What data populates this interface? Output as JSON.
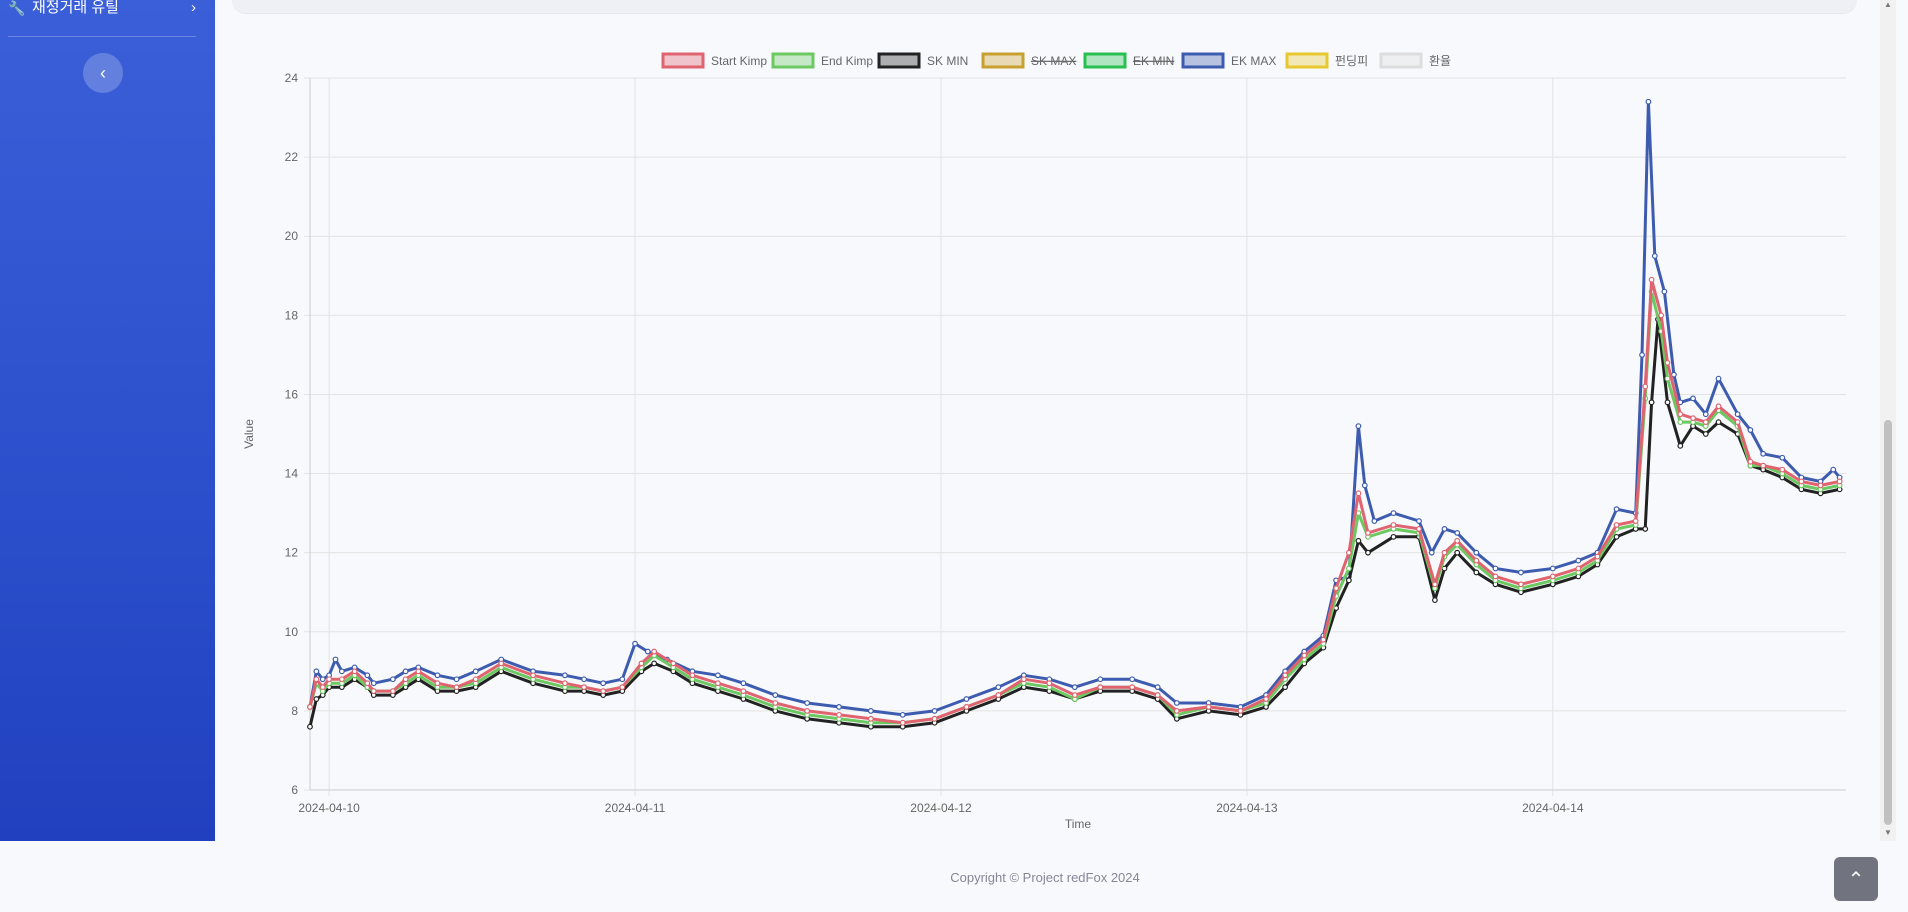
{
  "sidebar": {
    "item_label": "재정거래 유틸",
    "item_icon": "wrench-icon",
    "chevron_icon": "chevron-right-icon",
    "toggle_icon": "chevron-left-icon",
    "bg_color": "#2b4fcc"
  },
  "footer": {
    "copyright": "Copyright © Project redFox 2024"
  },
  "scroll_top_icon": "chevron-up-icon",
  "chart_data": {
    "type": "line",
    "xlabel": "Time",
    "ylabel": "Value",
    "ylim": [
      6,
      24
    ],
    "yticks": [
      6,
      8,
      10,
      12,
      14,
      16,
      18,
      20,
      22,
      24
    ],
    "xtick_labels": [
      "2024-04-10",
      "2024-04-11",
      "2024-04-12",
      "2024-04-13",
      "2024-04-14"
    ],
    "x_start": "2024-04-09T22:30",
    "x_end": "2024-04-14T23:00",
    "legend_position": "top",
    "grid": true,
    "series": [
      {
        "name": "Start Kimp",
        "color": "#e06470",
        "hidden": false
      },
      {
        "name": "End Kimp",
        "color": "#6cc860",
        "hidden": false
      },
      {
        "name": "SK MIN",
        "color": "#222222",
        "hidden": false
      },
      {
        "name": "SK MAX",
        "color": "#c8a030",
        "hidden": true
      },
      {
        "name": "EK MIN",
        "color": "#28c050",
        "hidden": true
      },
      {
        "name": "EK MAX",
        "color": "#3e5caf",
        "hidden": false
      },
      {
        "name": "펀딩피",
        "color": "#e8c830",
        "hidden": false
      },
      {
        "name": "환율",
        "color": "#dddddd",
        "hidden": false
      }
    ],
    "start_kimp": [
      [
        0,
        8.1
      ],
      [
        0.1,
        8.8
      ],
      [
        0.2,
        8.6
      ],
      [
        0.3,
        8.8
      ],
      [
        0.5,
        8.8
      ],
      [
        0.7,
        9.0
      ],
      [
        0.9,
        8.7
      ],
      [
        1.0,
        8.5
      ],
      [
        1.3,
        8.5
      ],
      [
        1.5,
        8.8
      ],
      [
        1.7,
        9.0
      ],
      [
        2.0,
        8.7
      ],
      [
        2.3,
        8.6
      ],
      [
        2.6,
        8.8
      ],
      [
        3.0,
        9.2
      ],
      [
        3.5,
        8.9
      ],
      [
        4.0,
        8.7
      ],
      [
        4.3,
        8.6
      ],
      [
        4.6,
        8.5
      ],
      [
        4.9,
        8.6
      ],
      [
        5.2,
        9.2
      ],
      [
        5.4,
        9.5
      ],
      [
        5.7,
        9.2
      ],
      [
        6.0,
        8.9
      ],
      [
        6.4,
        8.7
      ],
      [
        6.8,
        8.5
      ],
      [
        7.3,
        8.2
      ],
      [
        7.8,
        8.0
      ],
      [
        8.3,
        7.9
      ],
      [
        8.8,
        7.8
      ],
      [
        9.3,
        7.7
      ],
      [
        9.8,
        7.8
      ],
      [
        10.3,
        8.1
      ],
      [
        10.8,
        8.4
      ],
      [
        11.2,
        8.8
      ],
      [
        11.6,
        8.7
      ],
      [
        12.0,
        8.4
      ],
      [
        12.4,
        8.6
      ],
      [
        12.9,
        8.6
      ],
      [
        13.3,
        8.4
      ],
      [
        13.6,
        8.0
      ],
      [
        14.1,
        8.1
      ],
      [
        14.6,
        8.0
      ],
      [
        15.0,
        8.3
      ],
      [
        15.3,
        8.9
      ],
      [
        15.6,
        9.4
      ],
      [
        15.9,
        9.8
      ],
      [
        16.1,
        11.1
      ],
      [
        16.3,
        12.0
      ],
      [
        16.45,
        13.5
      ],
      [
        16.6,
        12.5
      ],
      [
        17.0,
        12.7
      ],
      [
        17.4,
        12.6
      ],
      [
        17.65,
        11.2
      ],
      [
        17.8,
        12.0
      ],
      [
        18.0,
        12.3
      ],
      [
        18.3,
        11.8
      ],
      [
        18.6,
        11.4
      ],
      [
        19.0,
        11.2
      ],
      [
        19.5,
        11.4
      ],
      [
        19.9,
        11.6
      ],
      [
        20.2,
        11.9
      ],
      [
        20.5,
        12.7
      ],
      [
        20.8,
        12.8
      ],
      [
        20.95,
        16.2
      ],
      [
        21.05,
        18.9
      ],
      [
        21.2,
        18.0
      ],
      [
        21.3,
        16.8
      ],
      [
        21.5,
        15.5
      ],
      [
        21.7,
        15.4
      ],
      [
        21.9,
        15.3
      ],
      [
        22.1,
        15.7
      ],
      [
        22.4,
        15.3
      ],
      [
        22.6,
        14.3
      ],
      [
        22.8,
        14.2
      ],
      [
        23.1,
        14.1
      ],
      [
        23.4,
        13.8
      ],
      [
        23.7,
        13.7
      ],
      [
        24.0,
        13.8
      ]
    ],
    "sk_min": [
      [
        0,
        7.6
      ],
      [
        0.1,
        8.3
      ],
      [
        0.2,
        8.4
      ],
      [
        0.3,
        8.6
      ],
      [
        0.5,
        8.6
      ],
      [
        0.7,
        8.8
      ],
      [
        0.9,
        8.6
      ],
      [
        1.0,
        8.4
      ],
      [
        1.3,
        8.4
      ],
      [
        1.5,
        8.6
      ],
      [
        1.7,
        8.8
      ],
      [
        2.0,
        8.5
      ],
      [
        2.3,
        8.5
      ],
      [
        2.6,
        8.6
      ],
      [
        3.0,
        9.0
      ],
      [
        3.5,
        8.7
      ],
      [
        4.0,
        8.5
      ],
      [
        4.3,
        8.5
      ],
      [
        4.6,
        8.4
      ],
      [
        4.9,
        8.5
      ],
      [
        5.2,
        9.0
      ],
      [
        5.4,
        9.2
      ],
      [
        5.7,
        9.0
      ],
      [
        6.0,
        8.7
      ],
      [
        6.4,
        8.5
      ],
      [
        6.8,
        8.3
      ],
      [
        7.3,
        8.0
      ],
      [
        7.8,
        7.8
      ],
      [
        8.3,
        7.7
      ],
      [
        8.8,
        7.6
      ],
      [
        9.3,
        7.6
      ],
      [
        9.8,
        7.7
      ],
      [
        10.3,
        8.0
      ],
      [
        10.8,
        8.3
      ],
      [
        11.2,
        8.6
      ],
      [
        11.6,
        8.5
      ],
      [
        12.0,
        8.3
      ],
      [
        12.4,
        8.5
      ],
      [
        12.9,
        8.5
      ],
      [
        13.3,
        8.3
      ],
      [
        13.6,
        7.8
      ],
      [
        14.1,
        8.0
      ],
      [
        14.6,
        7.9
      ],
      [
        15.0,
        8.1
      ],
      [
        15.3,
        8.6
      ],
      [
        15.6,
        9.2
      ],
      [
        15.9,
        9.6
      ],
      [
        16.1,
        10.6
      ],
      [
        16.3,
        11.3
      ],
      [
        16.45,
        12.3
      ],
      [
        16.6,
        12.0
      ],
      [
        17.0,
        12.4
      ],
      [
        17.4,
        12.4
      ],
      [
        17.65,
        10.8
      ],
      [
        17.8,
        11.6
      ],
      [
        18.0,
        12.0
      ],
      [
        18.3,
        11.5
      ],
      [
        18.6,
        11.2
      ],
      [
        19.0,
        11.0
      ],
      [
        19.5,
        11.2
      ],
      [
        19.9,
        11.4
      ],
      [
        20.2,
        11.7
      ],
      [
        20.5,
        12.4
      ],
      [
        20.8,
        12.6
      ],
      [
        20.95,
        12.6
      ],
      [
        21.05,
        15.8
      ],
      [
        21.15,
        17.9
      ],
      [
        21.3,
        15.8
      ],
      [
        21.5,
        14.7
      ],
      [
        21.7,
        15.2
      ],
      [
        21.9,
        15.0
      ],
      [
        22.1,
        15.3
      ],
      [
        22.4,
        15.0
      ],
      [
        22.6,
        14.2
      ],
      [
        22.8,
        14.1
      ],
      [
        23.1,
        13.9
      ],
      [
        23.4,
        13.6
      ],
      [
        23.7,
        13.5
      ],
      [
        24.0,
        13.6
      ]
    ],
    "ek_max": [
      [
        0,
        8.1
      ],
      [
        0.1,
        9.0
      ],
      [
        0.2,
        8.8
      ],
      [
        0.3,
        8.9
      ],
      [
        0.4,
        9.3
      ],
      [
        0.5,
        9.0
      ],
      [
        0.7,
        9.1
      ],
      [
        0.9,
        8.9
      ],
      [
        1.0,
        8.7
      ],
      [
        1.3,
        8.8
      ],
      [
        1.5,
        9.0
      ],
      [
        1.7,
        9.1
      ],
      [
        2.0,
        8.9
      ],
      [
        2.3,
        8.8
      ],
      [
        2.6,
        9.0
      ],
      [
        3.0,
        9.3
      ],
      [
        3.5,
        9.0
      ],
      [
        4.0,
        8.9
      ],
      [
        4.3,
        8.8
      ],
      [
        4.6,
        8.7
      ],
      [
        4.9,
        8.8
      ],
      [
        5.1,
        9.7
      ],
      [
        5.3,
        9.5
      ],
      [
        5.6,
        9.3
      ],
      [
        6.0,
        9.0
      ],
      [
        6.4,
        8.9
      ],
      [
        6.8,
        8.7
      ],
      [
        7.3,
        8.4
      ],
      [
        7.8,
        8.2
      ],
      [
        8.3,
        8.1
      ],
      [
        8.8,
        8.0
      ],
      [
        9.3,
        7.9
      ],
      [
        9.8,
        8.0
      ],
      [
        10.3,
        8.3
      ],
      [
        10.8,
        8.6
      ],
      [
        11.2,
        8.9
      ],
      [
        11.6,
        8.8
      ],
      [
        12.0,
        8.6
      ],
      [
        12.4,
        8.8
      ],
      [
        12.9,
        8.8
      ],
      [
        13.3,
        8.6
      ],
      [
        13.6,
        8.2
      ],
      [
        14.1,
        8.2
      ],
      [
        14.6,
        8.1
      ],
      [
        15.0,
        8.4
      ],
      [
        15.3,
        9.0
      ],
      [
        15.6,
        9.5
      ],
      [
        15.9,
        9.9
      ],
      [
        16.1,
        11.3
      ],
      [
        16.3,
        11.4
      ],
      [
        16.45,
        15.2
      ],
      [
        16.55,
        13.7
      ],
      [
        16.7,
        12.8
      ],
      [
        17.0,
        13.0
      ],
      [
        17.4,
        12.8
      ],
      [
        17.6,
        12.0
      ],
      [
        17.8,
        12.6
      ],
      [
        18.0,
        12.5
      ],
      [
        18.3,
        12.0
      ],
      [
        18.6,
        11.6
      ],
      [
        19.0,
        11.5
      ],
      [
        19.5,
        11.6
      ],
      [
        19.9,
        11.8
      ],
      [
        20.2,
        12.0
      ],
      [
        20.5,
        13.1
      ],
      [
        20.8,
        13.0
      ],
      [
        20.9,
        17.0
      ],
      [
        21.0,
        23.4
      ],
      [
        21.1,
        19.5
      ],
      [
        21.25,
        18.6
      ],
      [
        21.4,
        16.5
      ],
      [
        21.5,
        15.8
      ],
      [
        21.7,
        15.9
      ],
      [
        21.9,
        15.5
      ],
      [
        22.1,
        16.4
      ],
      [
        22.4,
        15.5
      ],
      [
        22.6,
        15.1
      ],
      [
        22.8,
        14.5
      ],
      [
        23.1,
        14.4
      ],
      [
        23.4,
        13.9
      ],
      [
        23.7,
        13.8
      ],
      [
        23.9,
        14.1
      ],
      [
        24.0,
        13.9
      ]
    ],
    "end_kimp": [
      [
        0,
        8.1
      ],
      [
        0.1,
        8.7
      ],
      [
        0.2,
        8.5
      ],
      [
        0.3,
        8.7
      ],
      [
        0.5,
        8.7
      ],
      [
        0.7,
        8.9
      ],
      [
        0.9,
        8.6
      ],
      [
        1.0,
        8.5
      ],
      [
        1.3,
        8.5
      ],
      [
        1.5,
        8.7
      ],
      [
        1.7,
        8.9
      ],
      [
        2.0,
        8.6
      ],
      [
        2.3,
        8.6
      ],
      [
        2.6,
        8.7
      ],
      [
        3.0,
        9.1
      ],
      [
        3.5,
        8.8
      ],
      [
        4.0,
        8.6
      ],
      [
        4.3,
        8.6
      ],
      [
        4.6,
        8.5
      ],
      [
        4.9,
        8.6
      ],
      [
        5.2,
        9.1
      ],
      [
        5.4,
        9.4
      ],
      [
        5.7,
        9.1
      ],
      [
        6.0,
        8.8
      ],
      [
        6.4,
        8.6
      ],
      [
        6.8,
        8.4
      ],
      [
        7.3,
        8.1
      ],
      [
        7.8,
        7.9
      ],
      [
        8.3,
        7.8
      ],
      [
        8.8,
        7.7
      ],
      [
        9.3,
        7.7
      ],
      [
        9.8,
        7.8
      ],
      [
        10.3,
        8.1
      ],
      [
        10.8,
        8.4
      ],
      [
        11.2,
        8.7
      ],
      [
        11.6,
        8.6
      ],
      [
        12.0,
        8.3
      ],
      [
        12.4,
        8.6
      ],
      [
        12.9,
        8.6
      ],
      [
        13.3,
        8.4
      ],
      [
        13.6,
        7.9
      ],
      [
        14.1,
        8.1
      ],
      [
        14.6,
        8.0
      ],
      [
        15.0,
        8.2
      ],
      [
        15.3,
        8.8
      ],
      [
        15.6,
        9.3
      ],
      [
        15.9,
        9.7
      ],
      [
        16.1,
        10.9
      ],
      [
        16.3,
        11.6
      ],
      [
        16.45,
        13.0
      ],
      [
        16.6,
        12.4
      ],
      [
        17.0,
        12.6
      ],
      [
        17.4,
        12.5
      ],
      [
        17.65,
        11.1
      ],
      [
        17.8,
        11.9
      ],
      [
        18.0,
        12.2
      ],
      [
        18.3,
        11.7
      ],
      [
        18.6,
        11.3
      ],
      [
        19.0,
        11.1
      ],
      [
        19.5,
        11.3
      ],
      [
        19.9,
        11.5
      ],
      [
        20.2,
        11.8
      ],
      [
        20.5,
        12.6
      ],
      [
        20.8,
        12.7
      ],
      [
        20.95,
        15.9
      ],
      [
        21.05,
        18.6
      ],
      [
        21.2,
        17.6
      ],
      [
        21.3,
        16.4
      ],
      [
        21.5,
        15.3
      ],
      [
        21.7,
        15.3
      ],
      [
        21.9,
        15.2
      ],
      [
        22.1,
        15.6
      ],
      [
        22.4,
        15.2
      ],
      [
        22.6,
        14.2
      ],
      [
        22.8,
        14.2
      ],
      [
        23.1,
        14.0
      ],
      [
        23.4,
        13.7
      ],
      [
        23.7,
        13.6
      ],
      [
        24.0,
        13.7
      ]
    ]
  }
}
